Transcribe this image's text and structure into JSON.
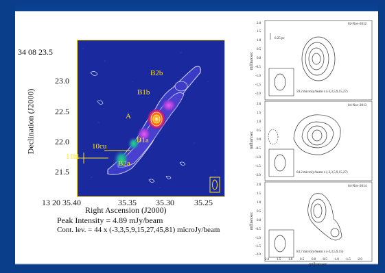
{
  "main_map": {
    "dec_first_tick": "34 08 23.5",
    "dec_ticks": [
      "23.0",
      "22.5",
      "22.0",
      "21.5"
    ],
    "ra_first_tick": "13 20 35.40",
    "ra_ticks": [
      "35.35",
      "35.30",
      "35.25"
    ],
    "ylabel": "Declination (J2000)",
    "xlabel": "Right Ascension (J2000)",
    "peak": "Peak Intensity = 4.89 mJy/beam",
    "contours": "Cont. lev. = 44 x (-3,3,5,9,15,27,45,81) microJy/beam",
    "components": [
      "B2b",
      "B1b",
      "A",
      "B1a",
      "10cu",
      "11hi",
      "B2a"
    ],
    "colors": {
      "background": "#1a2a9e",
      "label": "#ffe31a",
      "contour": "#d8dcf5"
    }
  },
  "panels": [
    {
      "date": "02-Nov-2012",
      "scale": "0.25 pc",
      "levels": "59.2 microJy/beam x (-3,3,5,9,15,27)"
    },
    {
      "date": "04-Nov-2013",
      "levels": "64.2 microJy/beam x (-3,3,5,9,15,27)"
    },
    {
      "date": "04-Nov-2014",
      "levels": "83.7 microJy/beam x (-3,3,5,9,15)"
    }
  ],
  "panel_axes": {
    "ylabel": "milliarcsec",
    "xlabel": "milliarcsec",
    "y_ticks": [
      "2.0",
      "1.5",
      "1.0",
      "0.5",
      "0.0",
      "-0.5",
      "-1.0",
      "-1.5",
      "-2.0"
    ],
    "x_ticks": [
      "2.0",
      "1.5",
      "1.0",
      "0.5",
      "0.0",
      "-0.5",
      "-1.0",
      "-1.5",
      "-2.0"
    ]
  }
}
